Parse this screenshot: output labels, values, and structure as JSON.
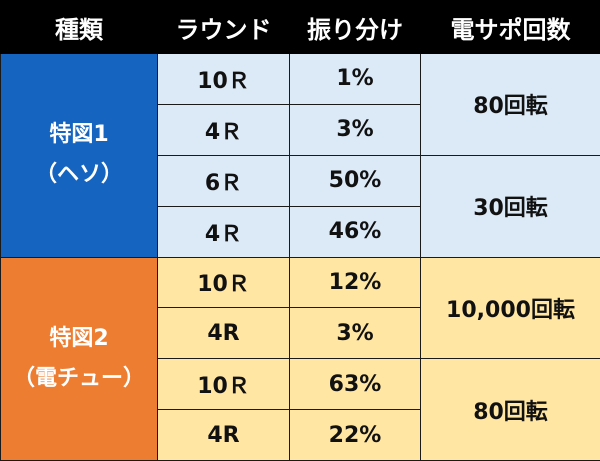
{
  "columns": {
    "type": "種類",
    "round": "ラウンド",
    "ratio": "振り分け",
    "support": "電サポ回数"
  },
  "colors": {
    "header_bg": "#000000",
    "tokuzu1_label_bg": "#1565c0",
    "tokuzu1_cells_bg": "#dce9f7",
    "tokuzu2_label_bg": "#ed7d31",
    "tokuzu2_cells_bg": "#ffe6a3"
  },
  "groups": [
    {
      "label_line1": "特図1",
      "label_line2": "（ヘソ）",
      "rows": [
        {
          "round": "10Ｒ",
          "ratio": "1%"
        },
        {
          "round": "4Ｒ",
          "ratio": "3%"
        },
        {
          "round": "6Ｒ",
          "ratio": "50%"
        },
        {
          "round": "4Ｒ",
          "ratio": "46%"
        }
      ],
      "support": [
        "80回転",
        "30回転"
      ]
    },
    {
      "label_line1": "特図2",
      "label_line2": "（電チュー）",
      "rows": [
        {
          "round": "10Ｒ",
          "ratio": "12%"
        },
        {
          "round": "4R",
          "ratio": "3%"
        },
        {
          "round": "10Ｒ",
          "ratio": "63%"
        },
        {
          "round": "4R",
          "ratio": "22%"
        }
      ],
      "support": [
        "10,000回転",
        "80回転"
      ]
    }
  ]
}
